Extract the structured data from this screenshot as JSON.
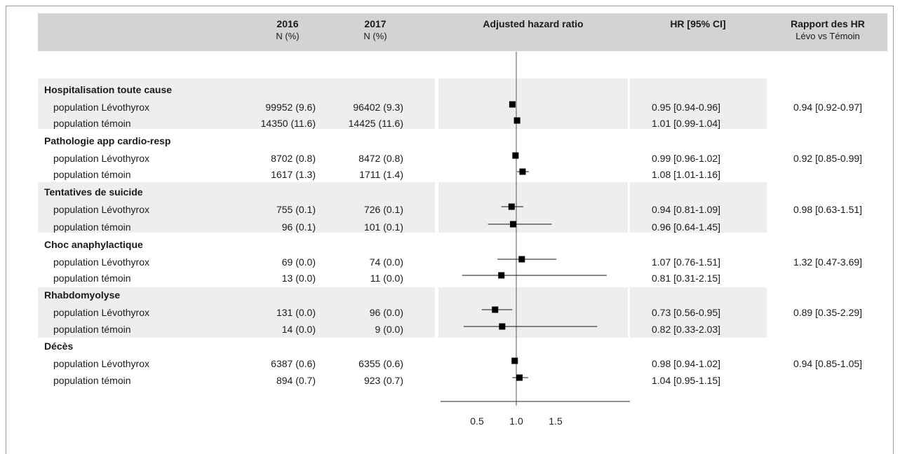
{
  "chart_data": {
    "type": "forest",
    "title": "",
    "columns": {
      "c2016_title": "2016",
      "c2016_sub": "N (%)",
      "c2017_title": "2017",
      "c2017_sub": "N (%)",
      "plot_title": "Adjusted hazard ratio",
      "ci_title": "HR [95% CI]",
      "ratio_title": "Rapport des HR",
      "ratio_sub": "Lévo vs Témoin"
    },
    "x_axis": {
      "ticks": [
        0.5,
        1.0,
        1.5
      ],
      "tick_labels": [
        "0.5",
        "1.0",
        "1.5"
      ],
      "reference": 1.0,
      "range": [
        0.3,
        2.2
      ]
    },
    "groups": [
      {
        "name": "Hospitalisation toute cause",
        "ratio": "0.94 [0.92-0.97]",
        "rows": [
          {
            "label": "population Lévothyrox",
            "n2016": "99952 (9.6)",
            "n2017": "96402 (9.3)",
            "hr": 0.95,
            "lo": 0.94,
            "hi": 0.96,
            "ci_text": "0.95 [0.94-0.96]"
          },
          {
            "label": "population témoin",
            "n2016": "14350 (11.6)",
            "n2017": "14425 (11.6)",
            "hr": 1.01,
            "lo": 0.99,
            "hi": 1.04,
            "ci_text": "1.01 [0.99-1.04]"
          }
        ]
      },
      {
        "name": "Pathologie app  cardio-resp",
        "ratio": "0.92 [0.85-0.99]",
        "rows": [
          {
            "label": "population Lévothyrox",
            "n2016": "8702 (0.8)",
            "n2017": "8472 (0.8)",
            "hr": 0.99,
            "lo": 0.96,
            "hi": 1.02,
            "ci_text": "0.99 [0.96-1.02]"
          },
          {
            "label": "population témoin",
            "n2016": "1617 (1.3)",
            "n2017": "1711 (1.4)",
            "hr": 1.08,
            "lo": 1.01,
            "hi": 1.16,
            "ci_text": "1.08 [1.01-1.16]"
          }
        ]
      },
      {
        "name": "Tentatives de suicide",
        "ratio": "0.98 [0.63-1.51]",
        "rows": [
          {
            "label": "population Lévothyrox",
            "n2016": "755 (0.1)",
            "n2017": "726 (0.1)",
            "hr": 0.94,
            "lo": 0.81,
            "hi": 1.09,
            "ci_text": "0.94 [0.81-1.09]"
          },
          {
            "label": "population témoin",
            "n2016": "96 (0.1)",
            "n2017": "101 (0.1)",
            "hr": 0.96,
            "lo": 0.64,
            "hi": 1.45,
            "ci_text": "0.96 [0.64-1.45]"
          }
        ]
      },
      {
        "name": "Choc anaphylactique",
        "ratio": "1.32 [0.47-3.69]",
        "rows": [
          {
            "label": "population Lévothyrox",
            "n2016": "69 (0.0)",
            "n2017": "74 (0.0)",
            "hr": 1.07,
            "lo": 0.76,
            "hi": 1.51,
            "ci_text": "1.07 [0.76-1.51]"
          },
          {
            "label": "population témoin",
            "n2016": "13 (0.0)",
            "n2017": "11 (0.0)",
            "hr": 0.81,
            "lo": 0.31,
            "hi": 2.15,
            "ci_text": "0.81 [0.31-2.15]"
          }
        ]
      },
      {
        "name": "Rhabdomyolyse",
        "ratio": "0.89 [0.35-2.29]",
        "rows": [
          {
            "label": "population Lévothyrox",
            "n2016": "131 (0.0)",
            "n2017": "96 (0.0)",
            "hr": 0.73,
            "lo": 0.56,
            "hi": 0.95,
            "ci_text": "0.73 [0.56-0.95]"
          },
          {
            "label": "population témoin",
            "n2016": "14 (0.0)",
            "n2017": "9 (0.0)",
            "hr": 0.82,
            "lo": 0.33,
            "hi": 2.03,
            "ci_text": "0.82 [0.33-2.03]"
          }
        ]
      },
      {
        "name": "Décès",
        "ratio": "0.94 [0.85-1.05]",
        "rows": [
          {
            "label": "population Lévothyrox",
            "n2016": "6387 (0.6)",
            "n2017": "6355 (0.6)",
            "hr": 0.98,
            "lo": 0.94,
            "hi": 1.02,
            "ci_text": "0.98 [0.94-1.02]"
          },
          {
            "label": "population témoin",
            "n2016": "894 (0.7)",
            "n2017": "923 (0.7)",
            "hr": 1.04,
            "lo": 0.95,
            "hi": 1.15,
            "ci_text": "1.04 [0.95-1.15]"
          }
        ]
      }
    ]
  }
}
